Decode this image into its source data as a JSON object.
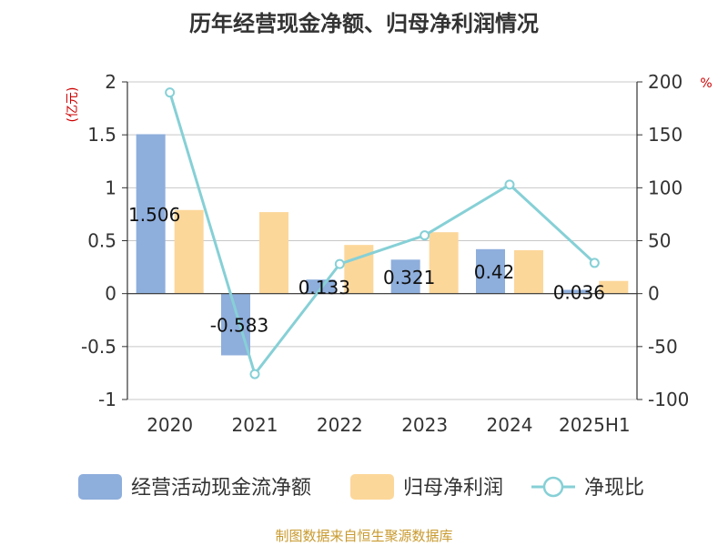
{
  "chart_data": {
    "type": "bar",
    "title": "历年经营现金净额、归母净利润情况",
    "categories": [
      "2020",
      "2021",
      "2022",
      "2023",
      "2024",
      "2025H1"
    ],
    "left_axis": {
      "unit": "(亿元)",
      "ylim": [
        -1,
        2
      ],
      "ticks": [
        -1,
        -0.5,
        0,
        0.5,
        1,
        1.5,
        2
      ]
    },
    "right_axis": {
      "unit": "%",
      "ylim": [
        -100,
        200
      ],
      "ticks": [
        -100,
        -50,
        0,
        50,
        100,
        150,
        200
      ]
    },
    "series": [
      {
        "name": "经营活动现金流净额",
        "type": "bar",
        "axis": "left",
        "color": "#8eaedc",
        "values": [
          1.506,
          -0.583,
          0.133,
          0.321,
          0.42,
          0.036
        ],
        "labels": [
          "1.506",
          "-0.583",
          "0.133",
          "0.321",
          "0.42",
          "0.036"
        ]
      },
      {
        "name": "归母净利润",
        "type": "bar",
        "axis": "left",
        "color": "#fcd79a",
        "values": [
          0.79,
          0.77,
          0.46,
          0.58,
          0.41,
          0.12
        ]
      },
      {
        "name": "净现比",
        "type": "line",
        "axis": "right",
        "color": "#86d0d6",
        "values": [
          190,
          -76,
          28,
          55,
          103,
          29
        ]
      }
    ],
    "grid": true,
    "legend_position": "bottom"
  },
  "source": "制图数据来自恒生聚源数据库"
}
